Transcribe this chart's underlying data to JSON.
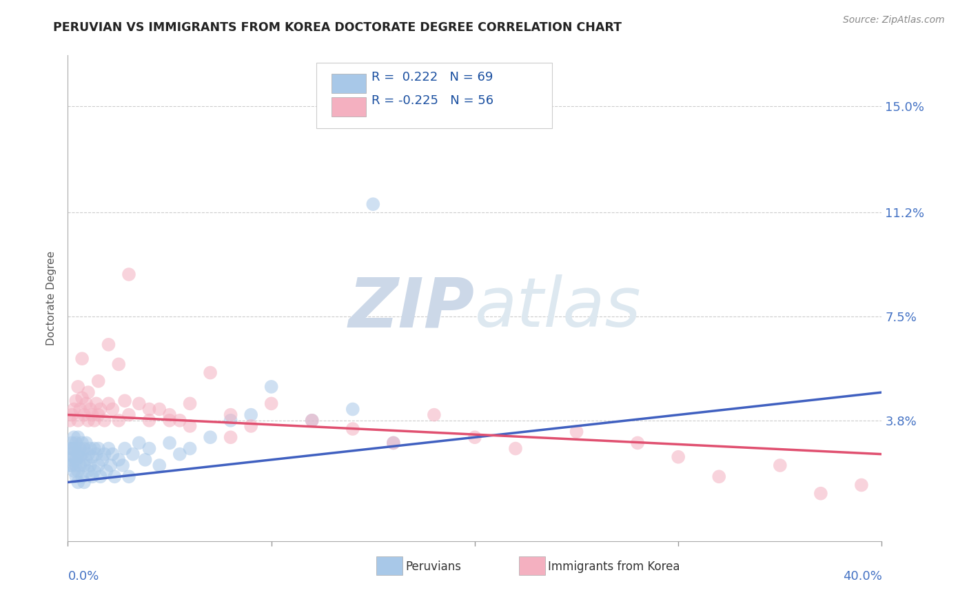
{
  "title": "PERUVIAN VS IMMIGRANTS FROM KOREA DOCTORATE DEGREE CORRELATION CHART",
  "source": "Source: ZipAtlas.com",
  "ylabel": "Doctorate Degree",
  "legend_label1": "Peruvians",
  "legend_label2": "Immigrants from Korea",
  "r1": 0.222,
  "n1": 69,
  "r2": -0.225,
  "n2": 56,
  "yticks": [
    0.0,
    0.038,
    0.075,
    0.112,
    0.15
  ],
  "ytick_labels": [
    "",
    "3.8%",
    "7.5%",
    "11.2%",
    "15.0%"
  ],
  "xlim": [
    0.0,
    0.4
  ],
  "ylim": [
    -0.005,
    0.168
  ],
  "color_blue": "#a8c8e8",
  "color_pink": "#f4b0c0",
  "color_blue_line": "#4060c0",
  "color_pink_line": "#e05070",
  "title_fontsize": 12.5,
  "watermark_color": "#ccd8e8",
  "blue_line_x": [
    0.0,
    0.4
  ],
  "blue_line_y": [
    0.016,
    0.048
  ],
  "pink_line_x": [
    0.0,
    0.4
  ],
  "pink_line_y": [
    0.04,
    0.026
  ],
  "peruvian_x": [
    0.001,
    0.001,
    0.001,
    0.002,
    0.002,
    0.002,
    0.002,
    0.003,
    0.003,
    0.003,
    0.003,
    0.004,
    0.004,
    0.004,
    0.004,
    0.005,
    0.005,
    0.005,
    0.005,
    0.006,
    0.006,
    0.006,
    0.007,
    0.007,
    0.007,
    0.008,
    0.008,
    0.008,
    0.009,
    0.009,
    0.01,
    0.01,
    0.011,
    0.011,
    0.012,
    0.012,
    0.013,
    0.013,
    0.014,
    0.015,
    0.015,
    0.016,
    0.017,
    0.018,
    0.019,
    0.02,
    0.021,
    0.022,
    0.023,
    0.025,
    0.027,
    0.028,
    0.03,
    0.032,
    0.035,
    0.038,
    0.04,
    0.045,
    0.05,
    0.055,
    0.06,
    0.07,
    0.08,
    0.09,
    0.1,
    0.12,
    0.14,
    0.15,
    0.16
  ],
  "peruvian_y": [
    0.026,
    0.022,
    0.028,
    0.03,
    0.024,
    0.028,
    0.022,
    0.032,
    0.025,
    0.02,
    0.028,
    0.018,
    0.03,
    0.024,
    0.022,
    0.026,
    0.02,
    0.032,
    0.016,
    0.025,
    0.028,
    0.022,
    0.026,
    0.018,
    0.03,
    0.022,
    0.028,
    0.016,
    0.024,
    0.03,
    0.02,
    0.026,
    0.022,
    0.028,
    0.018,
    0.025,
    0.028,
    0.02,
    0.026,
    0.022,
    0.028,
    0.018,
    0.024,
    0.026,
    0.02,
    0.028,
    0.022,
    0.026,
    0.018,
    0.024,
    0.022,
    0.028,
    0.018,
    0.026,
    0.03,
    0.024,
    0.028,
    0.022,
    0.03,
    0.026,
    0.028,
    0.032,
    0.038,
    0.04,
    0.05,
    0.038,
    0.042,
    0.115,
    0.03
  ],
  "korea_x": [
    0.001,
    0.002,
    0.003,
    0.004,
    0.005,
    0.005,
    0.006,
    0.007,
    0.008,
    0.009,
    0.01,
    0.011,
    0.012,
    0.013,
    0.014,
    0.015,
    0.016,
    0.018,
    0.02,
    0.022,
    0.025,
    0.028,
    0.03,
    0.035,
    0.04,
    0.045,
    0.05,
    0.055,
    0.06,
    0.07,
    0.08,
    0.09,
    0.1,
    0.12,
    0.14,
    0.16,
    0.18,
    0.2,
    0.22,
    0.25,
    0.28,
    0.3,
    0.32,
    0.35,
    0.37,
    0.39,
    0.007,
    0.01,
    0.015,
    0.02,
    0.025,
    0.03,
    0.04,
    0.05,
    0.06,
    0.08
  ],
  "korea_y": [
    0.038,
    0.04,
    0.042,
    0.045,
    0.038,
    0.05,
    0.042,
    0.046,
    0.04,
    0.044,
    0.038,
    0.042,
    0.04,
    0.038,
    0.044,
    0.04,
    0.042,
    0.038,
    0.044,
    0.042,
    0.038,
    0.045,
    0.04,
    0.044,
    0.038,
    0.042,
    0.04,
    0.038,
    0.044,
    0.055,
    0.04,
    0.036,
    0.044,
    0.038,
    0.035,
    0.03,
    0.04,
    0.032,
    0.028,
    0.034,
    0.03,
    0.025,
    0.018,
    0.022,
    0.012,
    0.015,
    0.06,
    0.048,
    0.052,
    0.065,
    0.058,
    0.09,
    0.042,
    0.038,
    0.036,
    0.032
  ]
}
